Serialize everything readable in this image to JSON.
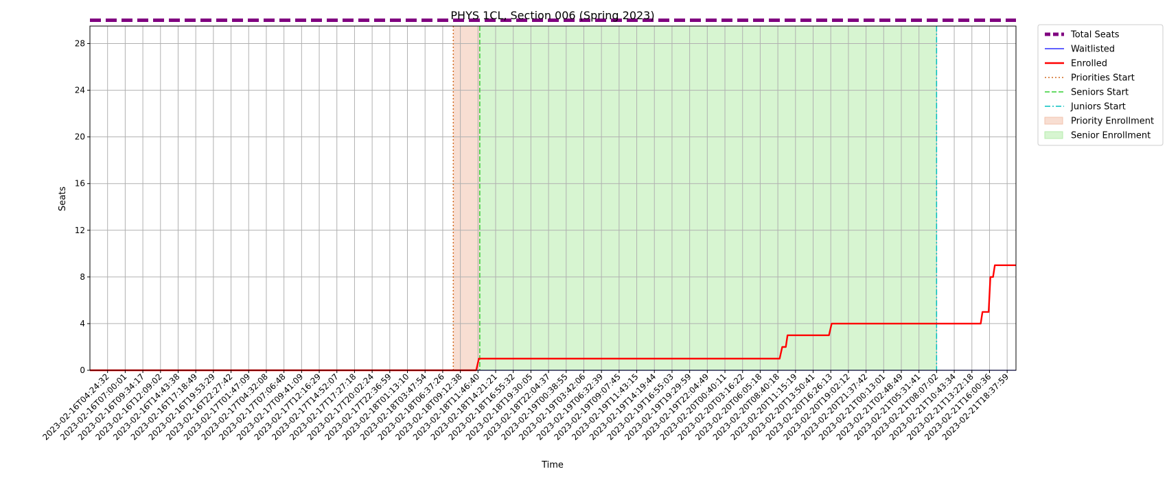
{
  "chart_data": {
    "type": "line",
    "title": "PHYS 1CL, Section 006 (Spring 2023)",
    "xlabel": "Time",
    "ylabel": "Seats",
    "ylim": [
      0,
      29.5
    ],
    "y_ticks": [
      0,
      4,
      8,
      12,
      16,
      20,
      24,
      28
    ],
    "grid": true,
    "legend_position": "outside-top-right",
    "x_ticks": [
      "2023-02-16T04:24:32",
      "2023-02-16T07:00:01",
      "2023-02-16T09:34:17",
      "2023-02-16T12:09:02",
      "2023-02-16T14:43:38",
      "2023-02-16T17:18:49",
      "2023-02-16T19:53:29",
      "2023-02-16T22:27:42",
      "2023-02-17T01:47:09",
      "2023-02-17T04:32:08",
      "2023-02-17T07:06:48",
      "2023-02-17T09:41:09",
      "2023-02-17T12:16:29",
      "2023-02-17T14:52:07",
      "2023-02-17T17:27:18",
      "2023-02-17T20:02:24",
      "2023-02-17T22:36:59",
      "2023-02-18T01:13:10",
      "2023-02-18T03:47:54",
      "2023-02-18T06:37:26",
      "2023-02-18T09:12:38",
      "2023-02-18T11:46:40",
      "2023-02-18T14:21:21",
      "2023-02-18T16:55:32",
      "2023-02-18T19:30:05",
      "2023-02-18T22:04:37",
      "2023-02-19T00:38:55",
      "2023-02-19T03:42:06",
      "2023-02-19T06:32:39",
      "2023-02-19T09:07:45",
      "2023-02-19T11:43:15",
      "2023-02-19T14:19:44",
      "2023-02-19T16:55:03",
      "2023-02-19T19:29:59",
      "2023-02-19T22:04:49",
      "2023-02-20T00:40:11",
      "2023-02-20T03:16:22",
      "2023-02-20T06:05:18",
      "2023-02-20T08:40:18",
      "2023-02-20T11:15:19",
      "2023-02-20T13:50:41",
      "2023-02-20T16:26:13",
      "2023-02-20T19:02:12",
      "2023-02-20T21:37:42",
      "2023-02-21T00:13:01",
      "2023-02-21T02:48:49",
      "2023-02-21T05:31:41",
      "2023-02-21T08:07:02",
      "2023-02-21T10:43:34",
      "2023-02-21T13:22:18",
      "2023-02-21T16:00:36",
      "2023-02-21T18:37:59"
    ],
    "x_range": [
      -1,
      51.5
    ],
    "series": [
      {
        "name": "Total Seats",
        "color": "#800080",
        "style": "dashed-thick",
        "points": [
          [
            -1,
            30
          ],
          [
            51.5,
            30
          ]
        ]
      },
      {
        "name": "Waitlisted",
        "color": "#0000ff",
        "style": "solid-thin",
        "points": [
          [
            -1,
            0
          ],
          [
            51.5,
            0
          ]
        ]
      },
      {
        "name": "Enrolled",
        "color": "#ff0000",
        "style": "solid",
        "points": [
          [
            -1,
            0
          ],
          [
            20.9,
            0
          ],
          [
            21.05,
            1
          ],
          [
            38.1,
            1
          ],
          [
            38.25,
            2
          ],
          [
            38.45,
            2
          ],
          [
            38.55,
            3
          ],
          [
            40.9,
            3
          ],
          [
            41.05,
            4
          ],
          [
            49.5,
            4
          ],
          [
            49.6,
            5
          ],
          [
            49.95,
            5
          ],
          [
            50.05,
            8
          ],
          [
            50.2,
            8
          ],
          [
            50.3,
            9
          ],
          [
            51.5,
            9
          ]
        ]
      }
    ],
    "vertical_lines": [
      {
        "name": "Priorities Start",
        "x": 19.6,
        "color": "#d2691e",
        "style": "dotted"
      },
      {
        "name": "Seniors Start",
        "x": 21.1,
        "color": "#32cd32",
        "style": "dashed"
      },
      {
        "name": "Juniors Start",
        "x": 47.0,
        "color": "#00bfbf",
        "style": "dashdot"
      }
    ],
    "spans": [
      {
        "name": "Priority Enrollment",
        "x0": 19.6,
        "x1": 21.1,
        "color": "#f2c3ad"
      },
      {
        "name": "Senior Enrollment",
        "x0": 21.1,
        "x1": 47.0,
        "color": "#b6ecac"
      }
    ]
  }
}
